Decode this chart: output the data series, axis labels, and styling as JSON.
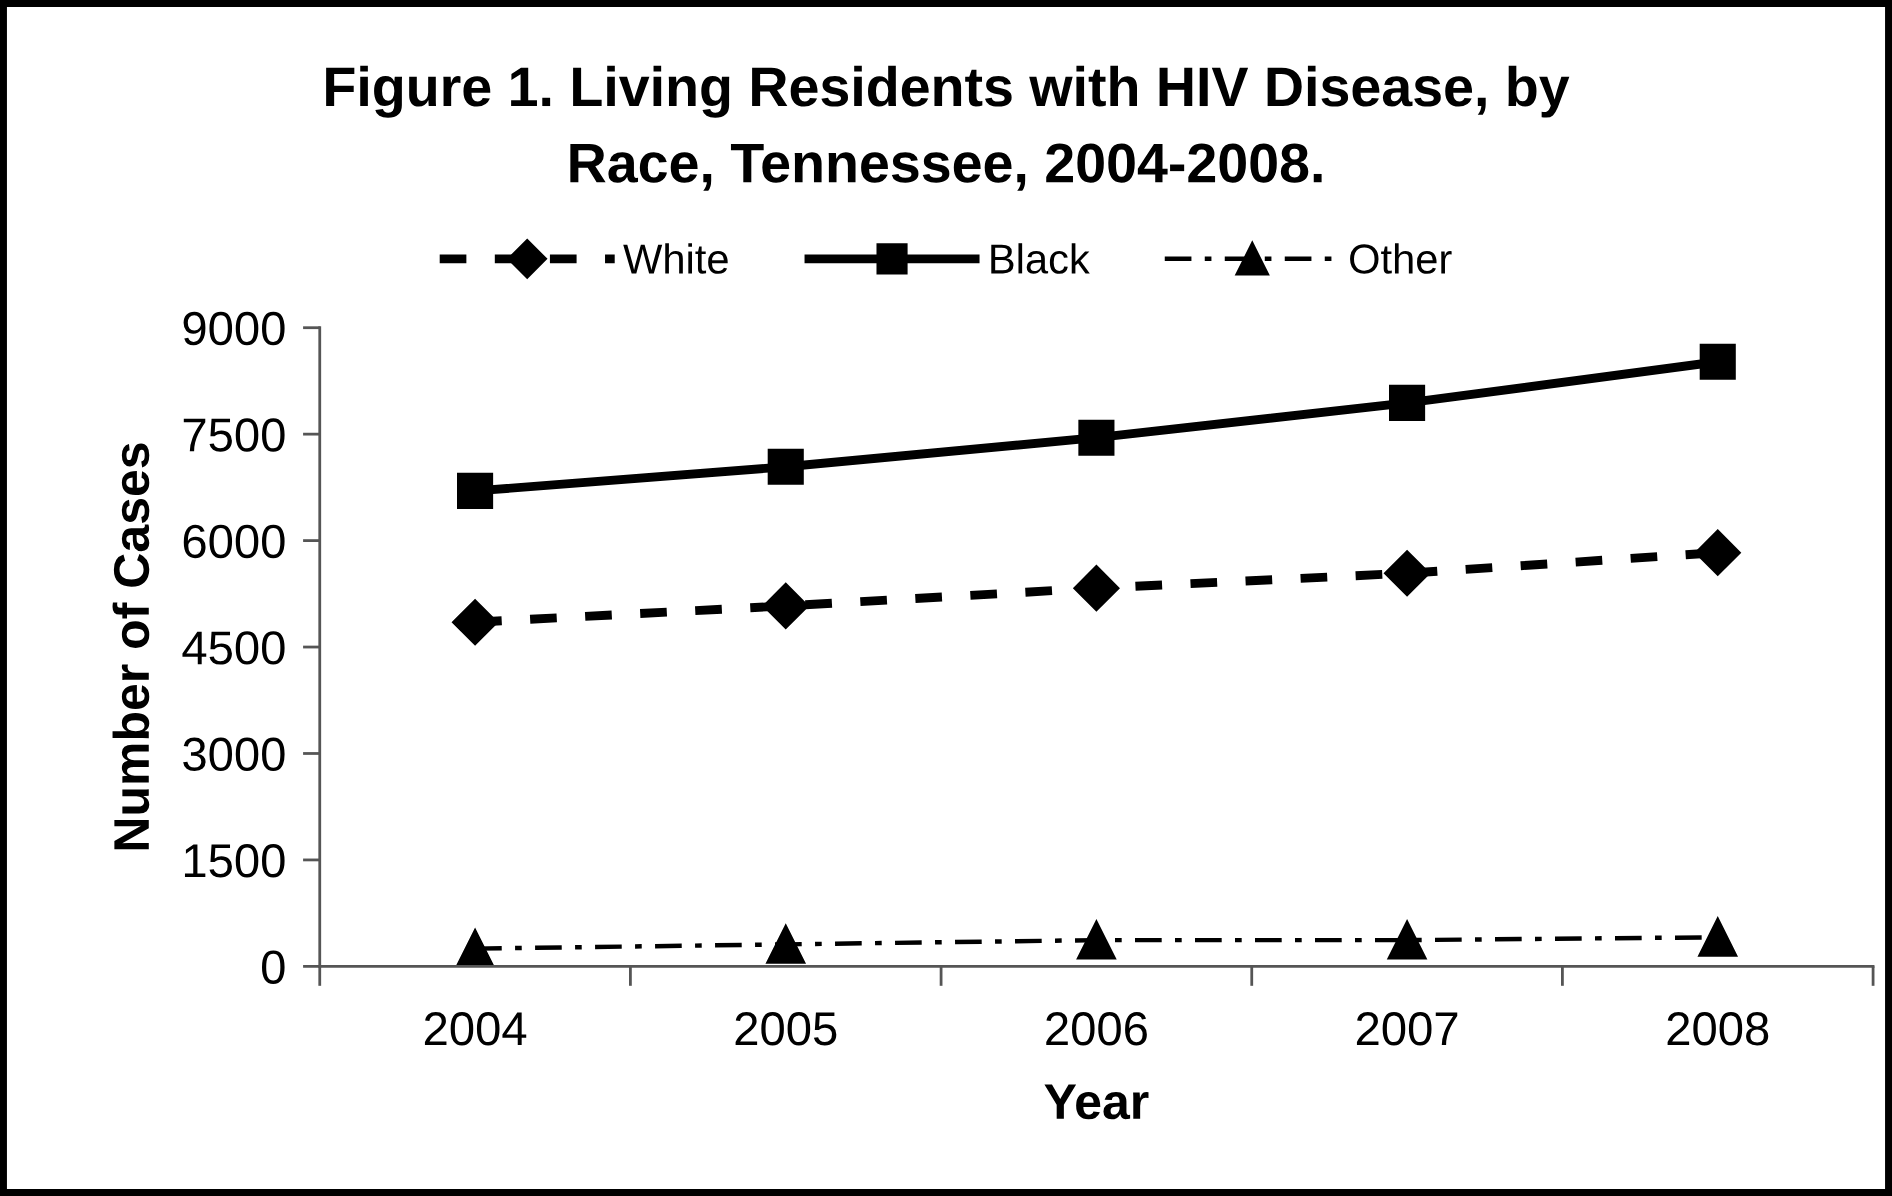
{
  "chart_data": {
    "type": "line",
    "title": "Figure 1. Living Residents with HIV Disease, by\nRace, Tennessee, 2004-2008.",
    "xlabel": "Year",
    "ylabel": "Number of Cases",
    "categories": [
      "2004",
      "2005",
      "2006",
      "2007",
      "2008"
    ],
    "series": [
      {
        "name": "White",
        "color": "#000000",
        "marker": "diamond",
        "line_style": "dashed",
        "values": [
          4850,
          5080,
          5330,
          5540,
          5830
        ]
      },
      {
        "name": "Black",
        "color": "#000000",
        "marker": "square",
        "line_style": "solid",
        "values": [
          6700,
          7040,
          7450,
          7940,
          8520
        ]
      },
      {
        "name": "Other",
        "color": "#000000",
        "marker": "triangle",
        "line_style": "dashdot",
        "values": [
          250,
          310,
          370,
          370,
          410
        ]
      }
    ],
    "ylim": [
      0,
      9000
    ],
    "yticks": [
      0,
      1500,
      3000,
      4500,
      6000,
      7500,
      9000
    ],
    "grid": false,
    "legend": "top"
  }
}
